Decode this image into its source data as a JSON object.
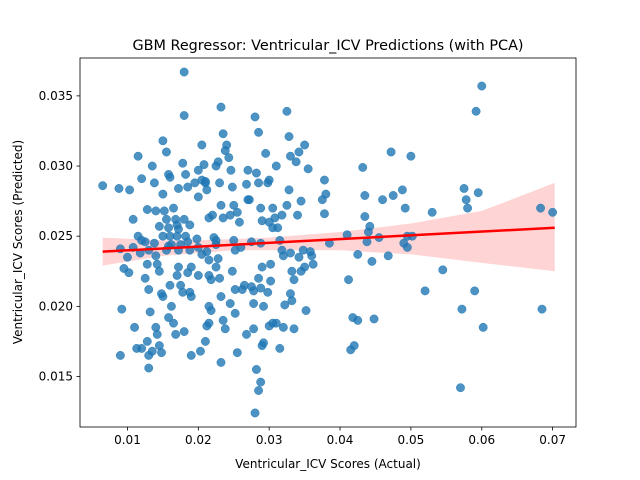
{
  "chart_data": {
    "type": "scatter",
    "title": "GBM Regressor: Ventricular_ICV Predictions (with PCA)",
    "xlabel": "Ventricular_ICV Scores (Actual)",
    "ylabel": "Ventricular_ICV Scores (Predicted)",
    "xlim": [
      0.0033,
      0.0733
    ],
    "ylim": [
      0.0114,
      0.0377
    ],
    "xticks": [
      {
        "value": 0.01,
        "label": "0.01"
      },
      {
        "value": 0.02,
        "label": "0.02"
      },
      {
        "value": 0.03,
        "label": "0.03"
      },
      {
        "value": 0.04,
        "label": "0.04"
      },
      {
        "value": 0.05,
        "label": "0.05"
      },
      {
        "value": 0.06,
        "label": "0.06"
      },
      {
        "value": 0.07,
        "label": "0.07"
      }
    ],
    "yticks": [
      {
        "value": 0.015,
        "label": "0.015"
      },
      {
        "value": 0.02,
        "label": "0.020"
      },
      {
        "value": 0.025,
        "label": "0.025"
      },
      {
        "value": 0.03,
        "label": "0.030"
      },
      {
        "value": 0.035,
        "label": "0.035"
      }
    ],
    "grid": false,
    "point_color": "#1f77b4",
    "regression_color": "#ff0000",
    "ci_color": "#ffcccc",
    "regression_line": {
      "x": [
        0.0065,
        0.0703
      ],
      "y": [
        0.0239,
        0.0256
      ]
    },
    "confidence_band": {
      "x": [
        0.0065,
        0.015,
        0.02,
        0.025,
        0.03,
        0.04,
        0.05,
        0.06,
        0.0703
      ],
      "lower": [
        0.0229,
        0.0236,
        0.0238,
        0.024,
        0.024,
        0.024,
        0.0237,
        0.0231,
        0.0225
      ],
      "upper": [
        0.0249,
        0.0247,
        0.0247,
        0.0248,
        0.0249,
        0.0253,
        0.0259,
        0.0268,
        0.0288
      ]
    },
    "series": [
      {
        "points": [
          [
            0.0065,
            0.0286
          ],
          [
            0.0088,
            0.0284
          ],
          [
            0.0103,
            0.0283
          ],
          [
            0.0108,
            0.0262
          ],
          [
            0.009,
            0.0241
          ],
          [
            0.0095,
            0.0227
          ],
          [
            0.01,
            0.0235
          ],
          [
            0.0102,
            0.0224
          ],
          [
            0.0092,
            0.0198
          ],
          [
            0.011,
            0.0185
          ],
          [
            0.009,
            0.0165
          ],
          [
            0.0113,
            0.017
          ],
          [
            0.012,
            0.017
          ],
          [
            0.0108,
            0.0242
          ],
          [
            0.0115,
            0.025
          ],
          [
            0.012,
            0.0247
          ],
          [
            0.0125,
            0.0246
          ],
          [
            0.0118,
            0.0238
          ],
          [
            0.013,
            0.024
          ],
          [
            0.0128,
            0.023
          ],
          [
            0.0125,
            0.022
          ],
          [
            0.013,
            0.0212
          ],
          [
            0.0132,
            0.0196
          ],
          [
            0.0128,
            0.0175
          ],
          [
            0.013,
            0.0165
          ],
          [
            0.0135,
            0.0168
          ],
          [
            0.013,
            0.0156
          ],
          [
            0.0115,
            0.0307
          ],
          [
            0.012,
            0.0291
          ],
          [
            0.0128,
            0.0269
          ],
          [
            0.0135,
            0.03
          ],
          [
            0.0138,
            0.0288
          ],
          [
            0.014,
            0.0268
          ],
          [
            0.0145,
            0.0257
          ],
          [
            0.015,
            0.025
          ],
          [
            0.0138,
            0.0245
          ],
          [
            0.014,
            0.0236
          ],
          [
            0.0142,
            0.023
          ],
          [
            0.0145,
            0.0225
          ],
          [
            0.0148,
            0.0209
          ],
          [
            0.015,
            0.0207
          ],
          [
            0.014,
            0.0185
          ],
          [
            0.0142,
            0.018
          ],
          [
            0.0145,
            0.0172
          ],
          [
            0.0148,
            0.0167
          ],
          [
            0.015,
            0.0318
          ],
          [
            0.0155,
            0.031
          ],
          [
            0.0158,
            0.0294
          ],
          [
            0.016,
            0.0292
          ],
          [
            0.015,
            0.028
          ],
          [
            0.0152,
            0.0268
          ],
          [
            0.0155,
            0.0262
          ],
          [
            0.0158,
            0.0256
          ],
          [
            0.016,
            0.025
          ],
          [
            0.0162,
            0.0244
          ],
          [
            0.0158,
            0.0243
          ],
          [
            0.0155,
            0.024
          ],
          [
            0.016,
            0.0215
          ],
          [
            0.0162,
            0.02
          ],
          [
            0.0165,
            0.0188
          ],
          [
            0.0168,
            0.018
          ],
          [
            0.0158,
            0.0192
          ],
          [
            0.0165,
            0.027
          ],
          [
            0.0168,
            0.0262
          ],
          [
            0.017,
            0.0258
          ],
          [
            0.0172,
            0.0255
          ],
          [
            0.017,
            0.025
          ],
          [
            0.0175,
            0.0244
          ],
          [
            0.0172,
            0.024
          ],
          [
            0.017,
            0.0222
          ],
          [
            0.0175,
            0.0215
          ],
          [
            0.0178,
            0.021
          ],
          [
            0.018,
            0.0182
          ],
          [
            0.0172,
            0.0228
          ],
          [
            0.0172,
            0.0284
          ],
          [
            0.0178,
            0.0302
          ],
          [
            0.018,
            0.0367
          ],
          [
            0.018,
            0.0336
          ],
          [
            0.0182,
            0.0294
          ],
          [
            0.0185,
            0.0285
          ],
          [
            0.0188,
            0.0258
          ],
          [
            0.018,
            0.0262
          ],
          [
            0.0182,
            0.025
          ],
          [
            0.0185,
            0.0246
          ],
          [
            0.0188,
            0.024
          ],
          [
            0.019,
            0.0228
          ],
          [
            0.0185,
            0.0224
          ],
          [
            0.0188,
            0.021
          ],
          [
            0.019,
            0.0207
          ],
          [
            0.019,
            0.0165
          ],
          [
            0.0195,
            0.0288
          ],
          [
            0.02,
            0.0297
          ],
          [
            0.0205,
            0.029
          ],
          [
            0.02,
            0.0278
          ],
          [
            0.0198,
            0.0248
          ],
          [
            0.02,
            0.0242
          ],
          [
            0.0205,
            0.0237
          ],
          [
            0.02,
            0.0222
          ],
          [
            0.0203,
            0.0168
          ],
          [
            0.0205,
            0.0315
          ],
          [
            0.021,
            0.0288
          ],
          [
            0.0208,
            0.0301
          ],
          [
            0.021,
            0.0289
          ],
          [
            0.0212,
            0.0283
          ],
          [
            0.0215,
            0.0263
          ],
          [
            0.0212,
            0.0239
          ],
          [
            0.0215,
            0.0233
          ],
          [
            0.0215,
            0.0222
          ],
          [
            0.0218,
            0.0219
          ],
          [
            0.0215,
            0.02
          ],
          [
            0.0218,
            0.0197
          ],
          [
            0.0212,
            0.0186
          ],
          [
            0.0215,
            0.0188
          ],
          [
            0.021,
            0.0175
          ],
          [
            0.022,
            0.0265
          ],
          [
            0.0222,
            0.0249
          ],
          [
            0.0225,
            0.0244
          ],
          [
            0.0228,
            0.0234
          ],
          [
            0.0225,
            0.0228
          ],
          [
            0.023,
            0.022
          ],
          [
            0.0228,
            0.0303
          ],
          [
            0.0232,
            0.0342
          ],
          [
            0.0235,
            0.0323
          ],
          [
            0.0238,
            0.0311
          ],
          [
            0.0225,
            0.03
          ],
          [
            0.023,
            0.0288
          ],
          [
            0.0232,
            0.0272
          ],
          [
            0.0235,
            0.0263
          ],
          [
            0.0225,
            0.0247
          ],
          [
            0.0232,
            0.0207
          ],
          [
            0.0235,
            0.019
          ],
          [
            0.0238,
            0.0184
          ],
          [
            0.0232,
            0.016
          ],
          [
            0.024,
            0.0315
          ],
          [
            0.0243,
            0.0306
          ],
          [
            0.0246,
            0.0297
          ],
          [
            0.0248,
            0.0285
          ],
          [
            0.025,
            0.0272
          ],
          [
            0.0245,
            0.0265
          ],
          [
            0.025,
            0.0247
          ],
          [
            0.0252,
            0.024
          ],
          [
            0.0248,
            0.0225
          ],
          [
            0.0252,
            0.0212
          ],
          [
            0.0245,
            0.0202
          ],
          [
            0.0252,
            0.0195
          ],
          [
            0.0255,
            0.0167
          ],
          [
            0.0255,
            0.0267
          ],
          [
            0.0258,
            0.026
          ],
          [
            0.026,
            0.0242
          ],
          [
            0.0262,
            0.0212
          ],
          [
            0.0265,
            0.0215
          ],
          [
            0.0268,
            0.018
          ],
          [
            0.0268,
            0.0287
          ],
          [
            0.027,
            0.0276
          ],
          [
            0.027,
            0.0297
          ],
          [
            0.0272,
            0.0276
          ],
          [
            0.0275,
            0.0246
          ],
          [
            0.0275,
            0.0214
          ],
          [
            0.0278,
            0.0211
          ],
          [
            0.0278,
            0.0202
          ],
          [
            0.0278,
            0.0184
          ],
          [
            0.028,
            0.0335
          ],
          [
            0.0285,
            0.0324
          ],
          [
            0.0282,
            0.0295
          ],
          [
            0.0285,
            0.0288
          ],
          [
            0.0288,
            0.027
          ],
          [
            0.029,
            0.0261
          ],
          [
            0.0288,
            0.0245
          ],
          [
            0.029,
            0.0228
          ],
          [
            0.0285,
            0.022
          ],
          [
            0.0288,
            0.0213
          ],
          [
            0.0282,
            0.0155
          ],
          [
            0.028,
            0.0124
          ],
          [
            0.0285,
            0.014
          ],
          [
            0.0288,
            0.0146
          ],
          [
            0.029,
            0.0172
          ],
          [
            0.0292,
            0.0174
          ],
          [
            0.0292,
            0.02
          ],
          [
            0.0295,
            0.0309
          ],
          [
            0.0298,
            0.0288
          ],
          [
            0.03,
            0.029
          ],
          [
            0.03,
            0.026
          ],
          [
            0.0302,
            0.023
          ],
          [
            0.0298,
            0.021
          ],
          [
            0.0302,
            0.0218
          ],
          [
            0.0305,
            0.027
          ],
          [
            0.0305,
            0.0256
          ],
          [
            0.0308,
            0.0263
          ],
          [
            0.0305,
            0.0188
          ],
          [
            0.03,
            0.0186
          ],
          [
            0.031,
            0.0188
          ],
          [
            0.031,
            0.03
          ],
          [
            0.0312,
            0.0256
          ],
          [
            0.0315,
            0.0247
          ],
          [
            0.0318,
            0.0265
          ],
          [
            0.0318,
            0.024
          ],
          [
            0.032,
            0.0236
          ],
          [
            0.0315,
            0.017
          ],
          [
            0.032,
            0.0185
          ],
          [
            0.0322,
            0.0201
          ],
          [
            0.0325,
            0.0339
          ],
          [
            0.0328,
            0.0321
          ],
          [
            0.033,
            0.0307
          ],
          [
            0.0328,
            0.0283
          ],
          [
            0.0325,
            0.0272
          ],
          [
            0.033,
            0.0238
          ],
          [
            0.0332,
            0.0225
          ],
          [
            0.033,
            0.0209
          ],
          [
            0.0332,
            0.0204
          ],
          [
            0.0335,
            0.0219
          ],
          [
            0.0335,
            0.0184
          ],
          [
            0.0338,
            0.0303
          ],
          [
            0.0342,
            0.031
          ],
          [
            0.034,
            0.0265
          ],
          [
            0.0345,
            0.0275
          ],
          [
            0.0348,
            0.024
          ],
          [
            0.0345,
            0.0225
          ],
          [
            0.0342,
            0.0235
          ],
          [
            0.035,
            0.0228
          ],
          [
            0.035,
            0.0315
          ],
          [
            0.0355,
            0.0298
          ],
          [
            0.0352,
            0.0197
          ],
          [
            0.0358,
            0.0239
          ],
          [
            0.036,
            0.0236
          ],
          [
            0.0362,
            0.023
          ],
          [
            0.0378,
            0.029
          ],
          [
            0.0375,
            0.0276
          ],
          [
            0.038,
            0.028
          ],
          [
            0.0378,
            0.0266
          ],
          [
            0.0385,
            0.0245
          ],
          [
            0.041,
            0.0251
          ],
          [
            0.0412,
            0.0219
          ],
          [
            0.0415,
            0.0169
          ],
          [
            0.0418,
            0.0192
          ],
          [
            0.042,
            0.0172
          ],
          [
            0.0425,
            0.019
          ],
          [
            0.0425,
            0.0237
          ],
          [
            0.0432,
            0.0299
          ],
          [
            0.0435,
            0.0279
          ],
          [
            0.0435,
            0.0264
          ],
          [
            0.0438,
            0.0246
          ],
          [
            0.044,
            0.0253
          ],
          [
            0.0442,
            0.0257
          ],
          [
            0.0445,
            0.0232
          ],
          [
            0.0448,
            0.0191
          ],
          [
            0.0455,
            0.0249
          ],
          [
            0.046,
            0.0276
          ],
          [
            0.0468,
            0.0236
          ],
          [
            0.0472,
            0.031
          ],
          [
            0.0475,
            0.0279
          ],
          [
            0.0488,
            0.0283
          ],
          [
            0.049,
            0.0245
          ],
          [
            0.0492,
            0.027
          ],
          [
            0.0495,
            0.025
          ],
          [
            0.0495,
            0.0242
          ],
          [
            0.05,
            0.0307
          ],
          [
            0.0502,
            0.025
          ],
          [
            0.052,
            0.0211
          ],
          [
            0.053,
            0.0267
          ],
          [
            0.0545,
            0.0226
          ],
          [
            0.057,
            0.0142
          ],
          [
            0.0572,
            0.0198
          ],
          [
            0.0575,
            0.0284
          ],
          [
            0.0578,
            0.0276
          ],
          [
            0.058,
            0.027
          ],
          [
            0.059,
            0.0211
          ],
          [
            0.0592,
            0.0339
          ],
          [
            0.0595,
            0.0281
          ],
          [
            0.06,
            0.0357
          ],
          [
            0.0602,
            0.0185
          ],
          [
            0.0683,
            0.027
          ],
          [
            0.0685,
            0.0198
          ],
          [
            0.07,
            0.0267
          ]
        ]
      }
    ]
  }
}
